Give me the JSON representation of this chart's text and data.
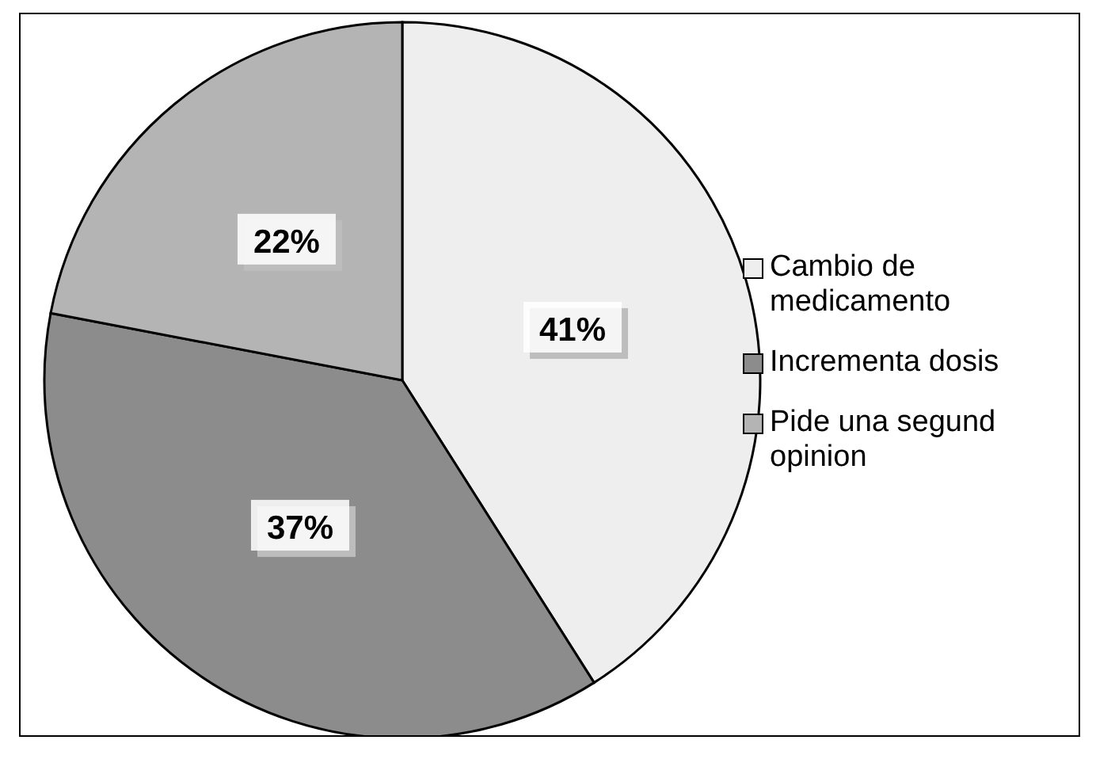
{
  "chart_data": {
    "type": "pie",
    "categories": [
      "Cambio de medicamento",
      "Incrementa dosis",
      "Pide una segund opinion"
    ],
    "values": [
      41,
      37,
      22
    ],
    "value_labels": [
      "41%",
      "37%",
      "22%"
    ],
    "colors": [
      "#eeeeee",
      "#8c8c8c",
      "#b4b4b4"
    ],
    "legend": "right"
  }
}
